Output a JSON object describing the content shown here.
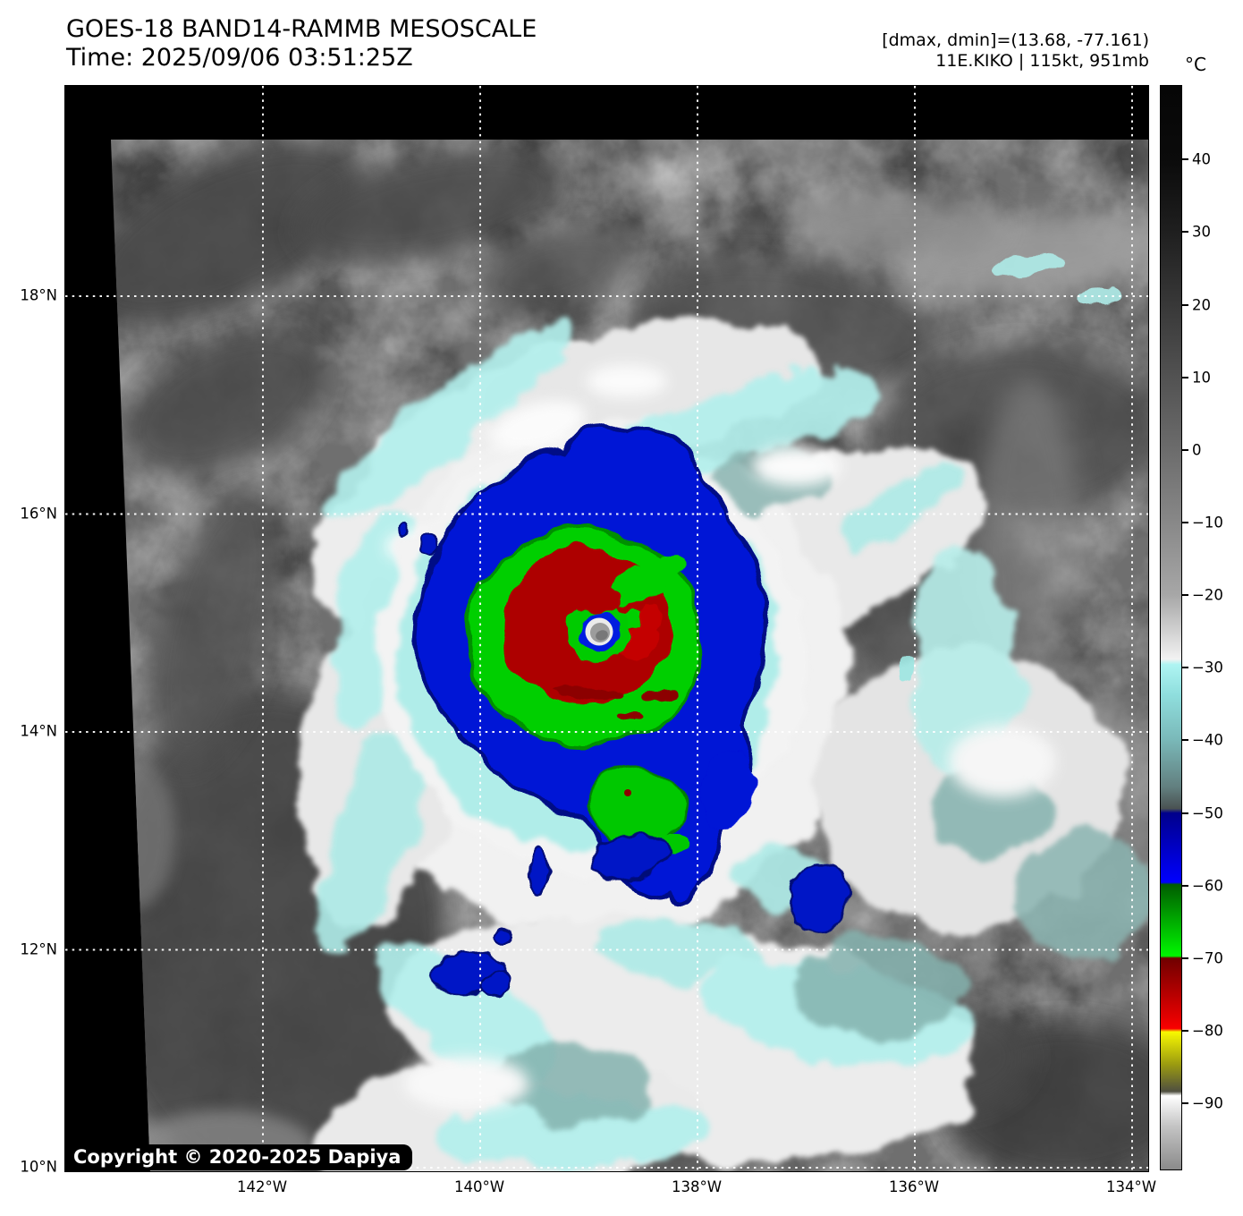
{
  "header": {
    "title": "GOES-18 BAND14-RAMMB MESOSCALE",
    "time": "Time: 2025/09/06 03:51:25Z",
    "range_line": "[dmax, dmin]=(13.68, -77.161)",
    "storm_line": "11E.KIKO | 115kt, 951mb"
  },
  "colorbar": {
    "unit": "°C",
    "tick_labels": [
      "40",
      "30",
      "20",
      "10",
      "0",
      "−10",
      "−20",
      "−30",
      "−40",
      "−50",
      "−60",
      "−70",
      "−80",
      "−90"
    ],
    "scale_segments": [
      {
        "from": 50,
        "to": 0,
        "colors": [
          "#000000",
          "#6c6c6c"
        ],
        "style": "gray ramp"
      },
      {
        "from": 0,
        "to": -30,
        "colors": [
          "#6c6c6c",
          "#f2f2f2"
        ],
        "style": "gray to white ramp"
      },
      {
        "from": -30,
        "to": -50,
        "colors": [
          "#aef4f2",
          "#4a5252"
        ],
        "style": "cyan to dark gray ramp"
      },
      {
        "from": -50,
        "to": -60,
        "colors": [
          "#00008b",
          "#0000fe"
        ],
        "style": "navy to blue ramp"
      },
      {
        "from": -60,
        "to": -70,
        "colors": [
          "#005c00",
          "#00f700"
        ],
        "style": "dark green to green ramp"
      },
      {
        "from": -70,
        "to": -80,
        "colors": [
          "#700000",
          "#f90000"
        ],
        "style": "dark red to red ramp"
      },
      {
        "from": -80,
        "to": -89,
        "colors": [
          "#f8f800",
          "#4f4f40"
        ],
        "style": "yellow to olive ramp"
      },
      {
        "from": -89,
        "to": -98,
        "colors": [
          "#ffffff",
          "#8b8b8b"
        ],
        "style": "white to gray ramp"
      }
    ]
  },
  "axes": {
    "lat_labels": [
      "18°N",
      "16°N",
      "14°N",
      "12°N",
      "10°N"
    ],
    "lon_labels": [
      "142°W",
      "140°W",
      "138°W",
      "136°W",
      "134°W"
    ]
  },
  "map": {
    "copyright": "Copyright © 2020-2025 Dapiya"
  }
}
